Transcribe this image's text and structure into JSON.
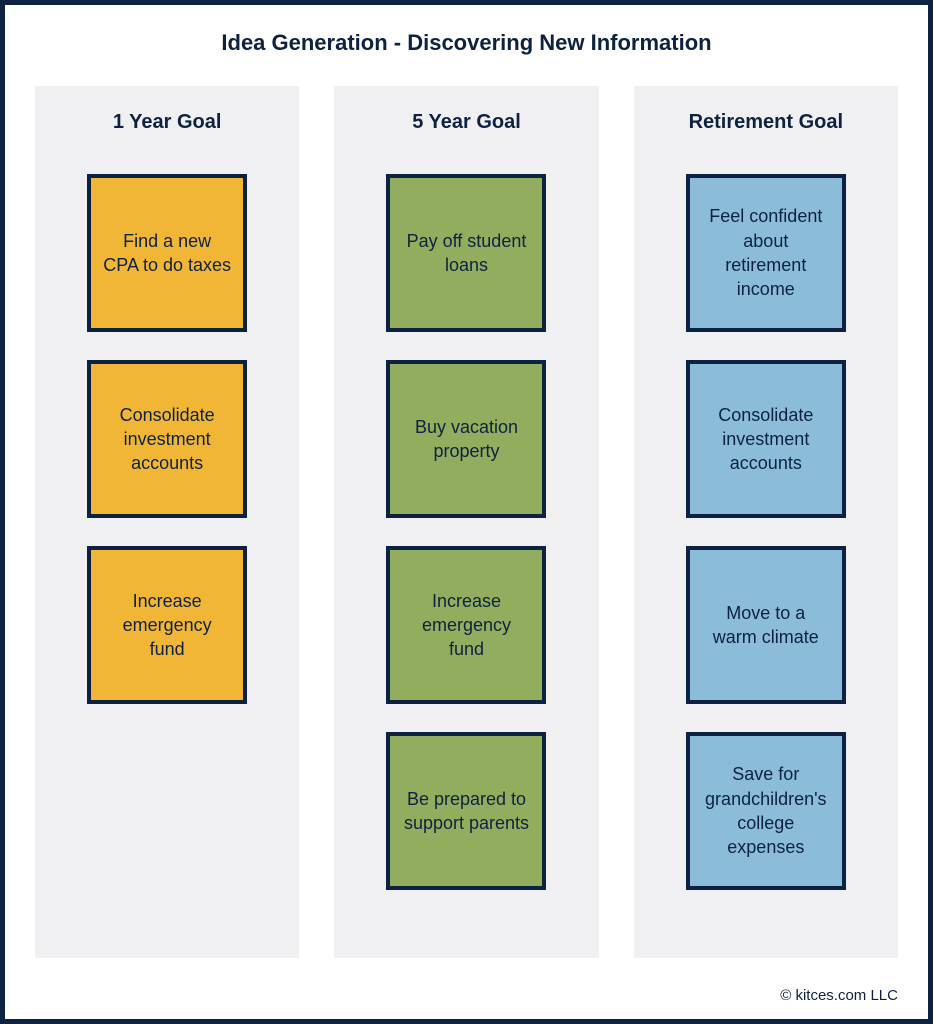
{
  "title": "Idea Generation - Discovering New Information",
  "footer": "© kitces.com LLC",
  "colors": {
    "border": "#0d2240",
    "columnBg": "#f0f0f2",
    "yellow": "#f2b636",
    "green": "#93ad5f",
    "blue": "#8bbdda",
    "text": "#0d2240"
  },
  "columns": [
    {
      "header": "1 Year Goal",
      "cardColor": "yellow",
      "cards": [
        "Find a new CPA to do taxes",
        "Consolidate investment accounts",
        "Increase emergency fund"
      ]
    },
    {
      "header": "5 Year Goal",
      "cardColor": "green",
      "cards": [
        "Pay off student loans",
        "Buy vacation property",
        "Increase emergency fund",
        "Be prepared to support parents"
      ]
    },
    {
      "header": "Retirement Goal",
      "cardColor": "blue",
      "cards": [
        "Feel confident about retirement income",
        "Consolidate investment accounts",
        "Move to a warm climate",
        "Save for grandchil­dren's college expenses"
      ]
    }
  ]
}
